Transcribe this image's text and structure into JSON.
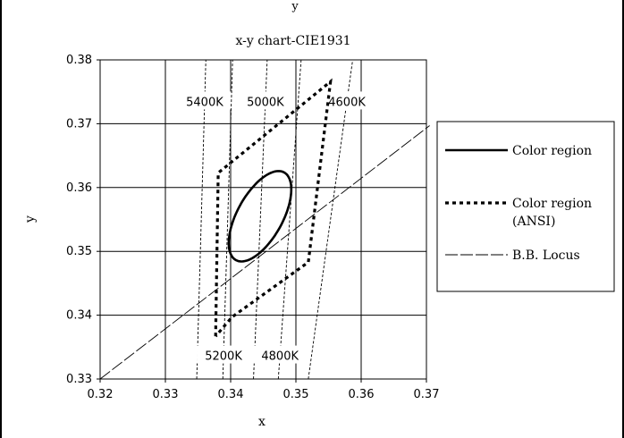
{
  "chart_data": {
    "type": "line",
    "title": "x-y chart-CIE1931",
    "top_caption": "y",
    "xlabel": "x",
    "ylabel": "y",
    "xlim": [
      0.32,
      0.37
    ],
    "ylim": [
      0.33,
      0.38
    ],
    "x_ticks": [
      0.32,
      0.33,
      0.34,
      0.35,
      0.36,
      0.37
    ],
    "y_ticks": [
      0.33,
      0.34,
      0.35,
      0.36,
      0.37,
      0.38
    ],
    "x_tick_labels": [
      "0.32",
      "0.33",
      "0.34",
      "0.35",
      "0.36",
      "0.37"
    ],
    "y_tick_labels": [
      "0.33",
      "0.34",
      "0.35",
      "0.36",
      "0.37",
      "0.38"
    ],
    "grid": true,
    "legend_position": "right",
    "series": [
      {
        "name": "Color region",
        "style": "solid-thick",
        "color": "#000000",
        "ellipse": {
          "center": [
            0.3445,
            0.3555
          ],
          "semi_axes": [
            0.0078,
            0.0035
          ],
          "angle_deg": 62
        }
      },
      {
        "name": "Color region (ANSI)",
        "style": "dotted-thick",
        "color": "#000000",
        "points": [
          [
            0.3377,
            0.3367
          ],
          [
            0.3381,
            0.3623
          ],
          [
            0.3553,
            0.3766
          ],
          [
            0.3519,
            0.3483
          ],
          [
            0.3402,
            0.3397
          ],
          [
            0.3377,
            0.3367
          ]
        ]
      },
      {
        "name": "B.B. Locus",
        "style": "dashed-thin",
        "color": "#000000",
        "points": [
          [
            0.32,
            0.33
          ],
          [
            0.3705,
            0.3697
          ]
        ]
      }
    ],
    "cct_lines": [
      {
        "label": "5400K",
        "label_pos": "top",
        "points": [
          [
            0.3348,
            0.33
          ],
          [
            0.3362,
            0.38
          ]
        ]
      },
      {
        "label": "5200K",
        "label_pos": "bottom",
        "points": [
          [
            0.3388,
            0.33
          ],
          [
            0.3403,
            0.38
          ]
        ]
      },
      {
        "label": "5000K",
        "label_pos": "top",
        "points": [
          [
            0.3435,
            0.33
          ],
          [
            0.3456,
            0.38
          ]
        ]
      },
      {
        "label": "4800K",
        "label_pos": "bottom",
        "points": [
          [
            0.3473,
            0.33
          ],
          [
            0.3508,
            0.38
          ]
        ]
      },
      {
        "label": "4600K",
        "label_pos": "top",
        "points": [
          [
            0.3519,
            0.33
          ],
          [
            0.3587,
            0.38
          ]
        ]
      }
    ],
    "legend": [
      {
        "label": "Color region",
        "label_line2": "",
        "style": "solid-thick"
      },
      {
        "label": "Color region",
        "label_line2": "(ANSI)",
        "style": "dotted-thick"
      },
      {
        "label": "B.B. Locus",
        "label_line2": "",
        "style": "dashed-thin"
      }
    ]
  }
}
